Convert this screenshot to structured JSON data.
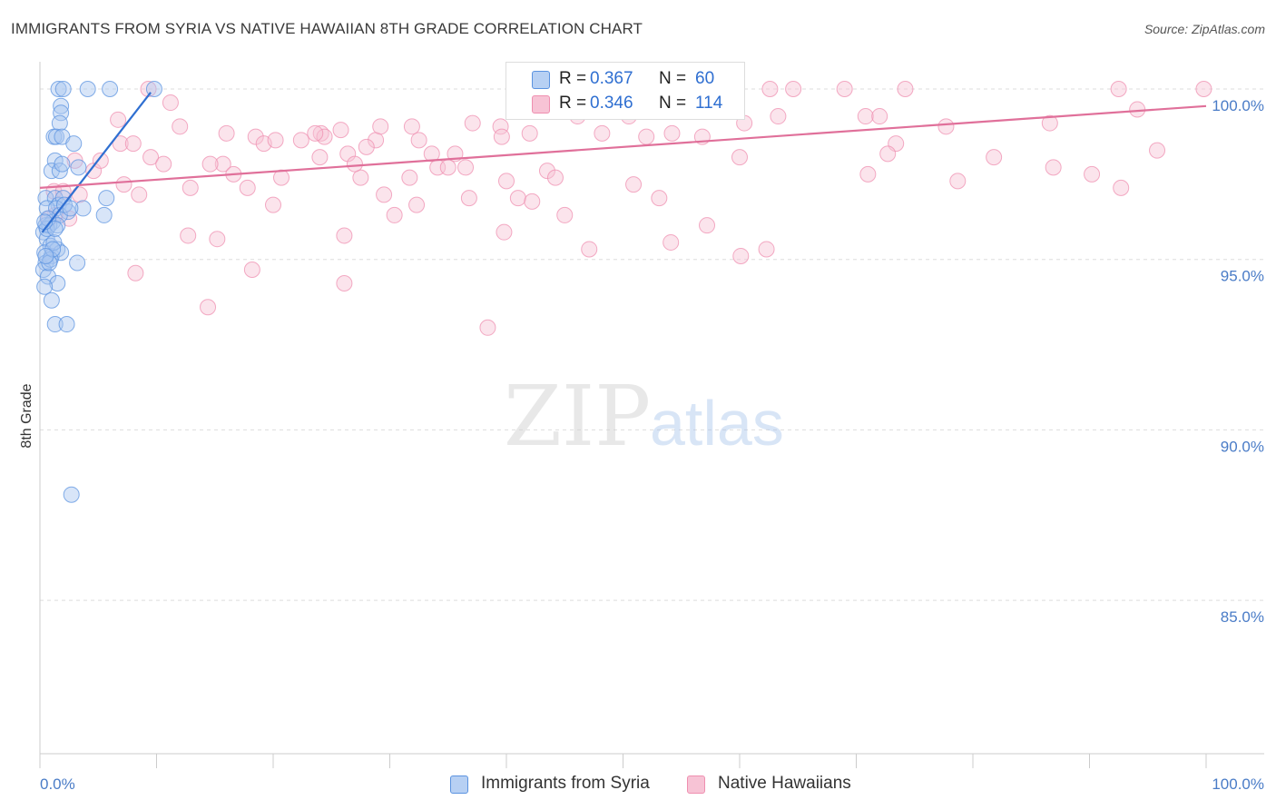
{
  "title": "IMMIGRANTS FROM SYRIA VS NATIVE HAWAIIAN 8TH GRADE CORRELATION CHART",
  "source": "Source: ZipAtlas.com",
  "watermark": {
    "zip": "ZIP",
    "atlas": "atlas"
  },
  "colors": {
    "blue": "#5b93e0",
    "pink": "#ef8fb0",
    "blue_line": "#2f6fd1",
    "pink_line": "#e0709a",
    "tick": "#4a7cc7"
  },
  "legend": {
    "row1": {
      "r_label": "R = ",
      "r_value": "0.367",
      "n_label": "N = ",
      "n_value": "60"
    },
    "row2": {
      "r_label": "R = ",
      "r_value": "0.346",
      "n_label": "N = ",
      "n_value": "114"
    }
  },
  "bottom_legend": {
    "series1": "Immigrants from Syria",
    "series2": "Native Hawaiians"
  },
  "chart_data": {
    "type": "scatter",
    "title": "IMMIGRANTS FROM SYRIA VS NATIVE HAWAIIAN 8TH GRADE CORRELATION CHART",
    "xlabel": "",
    "ylabel": "8th Grade",
    "xlim": [
      0,
      100
    ],
    "ylim": [
      80.5,
      100.8
    ],
    "x_tick_labels": {
      "left": "0.0%",
      "right": "100.0%"
    },
    "y_ticks": [
      {
        "value": 100,
        "label": "100.0%"
      },
      {
        "value": 95,
        "label": "95.0%"
      },
      {
        "value": 90,
        "label": "90.0%"
      },
      {
        "value": 85,
        "label": "85.0%"
      }
    ],
    "series": [
      {
        "name": "Immigrants from Syria",
        "R": 0.367,
        "N": 60,
        "trend": [
          [
            0.2,
            95.8
          ],
          [
            9.5,
            99.9
          ]
        ],
        "points": [
          [
            1.6,
            100
          ],
          [
            2.0,
            100
          ],
          [
            4.1,
            100
          ],
          [
            6.0,
            100
          ],
          [
            9.8,
            100
          ],
          [
            1.8,
            99.5
          ],
          [
            1.8,
            99.3
          ],
          [
            1.7,
            99.0
          ],
          [
            1.2,
            98.6
          ],
          [
            1.4,
            98.6
          ],
          [
            1.9,
            98.6
          ],
          [
            2.9,
            98.4
          ],
          [
            1.3,
            97.9
          ],
          [
            3.3,
            97.7
          ],
          [
            1.0,
            97.6
          ],
          [
            1.7,
            97.6
          ],
          [
            0.5,
            96.8
          ],
          [
            1.3,
            96.8
          ],
          [
            1.6,
            96.6
          ],
          [
            2.0,
            96.8
          ],
          [
            5.7,
            96.8
          ],
          [
            0.6,
            96.5
          ],
          [
            1.4,
            96.5
          ],
          [
            2.4,
            96.4
          ],
          [
            3.7,
            96.5
          ],
          [
            5.5,
            96.3
          ],
          [
            0.5,
            96.0
          ],
          [
            1.1,
            96.1
          ],
          [
            1.7,
            96.3
          ],
          [
            0.3,
            95.8
          ],
          [
            0.6,
            95.6
          ],
          [
            0.9,
            95.4
          ],
          [
            0.4,
            95.2
          ],
          [
            1.0,
            95.1
          ],
          [
            1.5,
            95.3
          ],
          [
            1.8,
            95.2
          ],
          [
            0.5,
            94.9
          ],
          [
            3.2,
            94.9
          ],
          [
            0.3,
            94.7
          ],
          [
            0.7,
            94.5
          ],
          [
            1.5,
            94.3
          ],
          [
            0.4,
            94.2
          ],
          [
            1.0,
            93.8
          ],
          [
            1.3,
            93.1
          ],
          [
            2.3,
            93.1
          ],
          [
            2.7,
            88.1
          ],
          [
            0.9,
            95.0
          ],
          [
            0.8,
            96.0
          ],
          [
            1.2,
            95.5
          ],
          [
            0.6,
            95.9
          ],
          [
            1.5,
            96.0
          ],
          [
            2.1,
            96.6
          ],
          [
            0.8,
            94.9
          ],
          [
            1.1,
            95.3
          ],
          [
            0.5,
            95.1
          ],
          [
            1.9,
            97.8
          ],
          [
            2.6,
            96.5
          ],
          [
            0.7,
            96.2
          ],
          [
            1.3,
            95.9
          ],
          [
            0.4,
            96.1
          ]
        ]
      },
      {
        "name": "Native Hawaiians",
        "R": 0.346,
        "N": 114,
        "trend": [
          [
            0,
            97.1
          ],
          [
            100,
            99.5
          ]
        ],
        "points": [
          [
            9.3,
            100
          ],
          [
            41.2,
            100
          ],
          [
            44.0,
            100
          ],
          [
            47.2,
            100
          ],
          [
            57.0,
            100
          ],
          [
            59.0,
            100
          ],
          [
            62.6,
            100
          ],
          [
            64.6,
            100
          ],
          [
            69.0,
            100
          ],
          [
            74.2,
            100
          ],
          [
            92.5,
            100
          ],
          [
            99.8,
            100
          ],
          [
            11.2,
            99.6
          ],
          [
            6.7,
            99.1
          ],
          [
            12.0,
            98.9
          ],
          [
            16.0,
            98.7
          ],
          [
            18.5,
            98.6
          ],
          [
            19.2,
            98.4
          ],
          [
            20.2,
            98.5
          ],
          [
            22.4,
            98.5
          ],
          [
            24.1,
            98.7
          ],
          [
            24.4,
            98.6
          ],
          [
            25.8,
            98.8
          ],
          [
            28.8,
            98.5
          ],
          [
            28.0,
            98.3
          ],
          [
            32.5,
            98.5
          ],
          [
            33.6,
            98.1
          ],
          [
            37.1,
            99.0
          ],
          [
            39.5,
            98.9
          ],
          [
            42.0,
            98.7
          ],
          [
            46.1,
            99.2
          ],
          [
            48.2,
            98.7
          ],
          [
            50.5,
            99.2
          ],
          [
            54.2,
            98.7
          ],
          [
            56.8,
            98.6
          ],
          [
            60.4,
            99.0
          ],
          [
            63.3,
            99.2
          ],
          [
            70.8,
            99.2
          ],
          [
            72.0,
            99.2
          ],
          [
            73.4,
            98.4
          ],
          [
            77.7,
            98.9
          ],
          [
            86.6,
            99.0
          ],
          [
            94.1,
            99.4
          ],
          [
            95.8,
            98.2
          ],
          [
            23.6,
            98.7
          ],
          [
            29.2,
            98.9
          ],
          [
            31.9,
            98.9
          ],
          [
            26.4,
            98.1
          ],
          [
            35.6,
            98.1
          ],
          [
            39.6,
            98.6
          ],
          [
            3.0,
            97.9
          ],
          [
            4.6,
            97.6
          ],
          [
            7.2,
            97.2
          ],
          [
            9.5,
            98.0
          ],
          [
            10.6,
            97.8
          ],
          [
            15.7,
            97.8
          ],
          [
            16.6,
            97.5
          ],
          [
            17.8,
            97.1
          ],
          [
            27.5,
            97.4
          ],
          [
            27.0,
            97.8
          ],
          [
            31.7,
            97.4
          ],
          [
            34.1,
            97.7
          ],
          [
            35.0,
            97.7
          ],
          [
            36.5,
            97.7
          ],
          [
            40.0,
            97.3
          ],
          [
            43.5,
            97.6
          ],
          [
            44.2,
            97.4
          ],
          [
            50.9,
            97.2
          ],
          [
            60.0,
            98.0
          ],
          [
            71.0,
            97.5
          ],
          [
            72.7,
            98.1
          ],
          [
            81.8,
            98.0
          ],
          [
            86.9,
            97.7
          ],
          [
            90.2,
            97.5
          ],
          [
            92.7,
            97.1
          ],
          [
            1.2,
            97.0
          ],
          [
            3.4,
            96.9
          ],
          [
            8.5,
            96.9
          ],
          [
            12.9,
            97.1
          ],
          [
            20.0,
            96.6
          ],
          [
            20.7,
            97.4
          ],
          [
            29.5,
            96.9
          ],
          [
            30.4,
            96.3
          ],
          [
            32.3,
            96.6
          ],
          [
            36.8,
            96.8
          ],
          [
            41.0,
            96.8
          ],
          [
            42.2,
            96.7
          ],
          [
            45.0,
            96.3
          ],
          [
            53.1,
            96.8
          ],
          [
            78.7,
            97.3
          ],
          [
            1.3,
            96.3
          ],
          [
            2.5,
            96.2
          ],
          [
            12.7,
            95.7
          ],
          [
            15.2,
            95.6
          ],
          [
            26.1,
            95.7
          ],
          [
            39.8,
            95.8
          ],
          [
            47.1,
            95.3
          ],
          [
            54.1,
            95.5
          ],
          [
            57.2,
            96.0
          ],
          [
            60.1,
            95.1
          ],
          [
            62.3,
            95.3
          ],
          [
            8.2,
            94.6
          ],
          [
            14.4,
            93.6
          ],
          [
            18.2,
            94.7
          ],
          [
            26.1,
            94.3
          ],
          [
            38.4,
            93.0
          ],
          [
            0.8,
            96.2
          ],
          [
            2.0,
            97.0
          ],
          [
            5.2,
            97.9
          ],
          [
            6.9,
            98.4
          ],
          [
            8.0,
            98.4
          ],
          [
            14.6,
            97.8
          ],
          [
            24.0,
            98.0
          ],
          [
            52.0,
            98.6
          ]
        ]
      }
    ]
  }
}
